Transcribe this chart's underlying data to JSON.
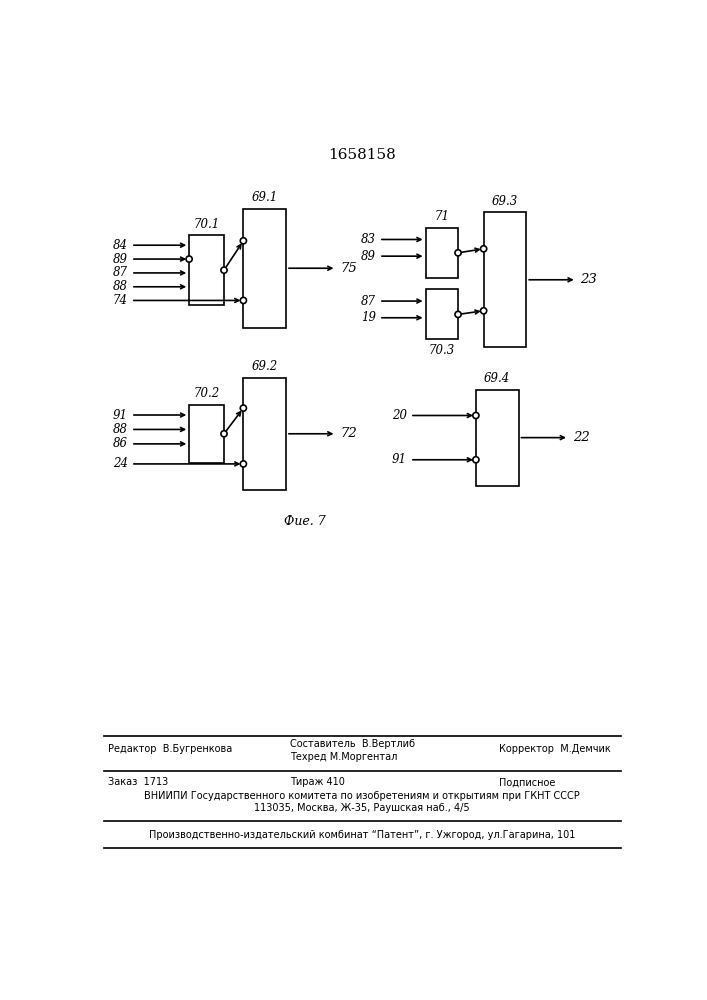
{
  "title": "1658158",
  "fig_label": "Фие. 7",
  "footer": {
    "line1_left": "Редактор  В.Бугренкова",
    "line1_center1": "Составитель  В.Вертлиб",
    "line1_center2": "Техред М.Моргентал",
    "line1_right": "Корректор  М.Демчик",
    "line2_left": "Заказ  1713",
    "line2_center": "Тираж 410",
    "line2_right": "Подписное",
    "line3": "ВНИИПИ Государственного комитета по изобретениям и открытиям при ГКНТ СССР",
    "line4": "113035, Москва, Ж-35, Раушская наб., 4/5",
    "line5": "Производственно-издательский комбинат “Патент”, г. Ужгород, ул.Гагарина, 101"
  }
}
